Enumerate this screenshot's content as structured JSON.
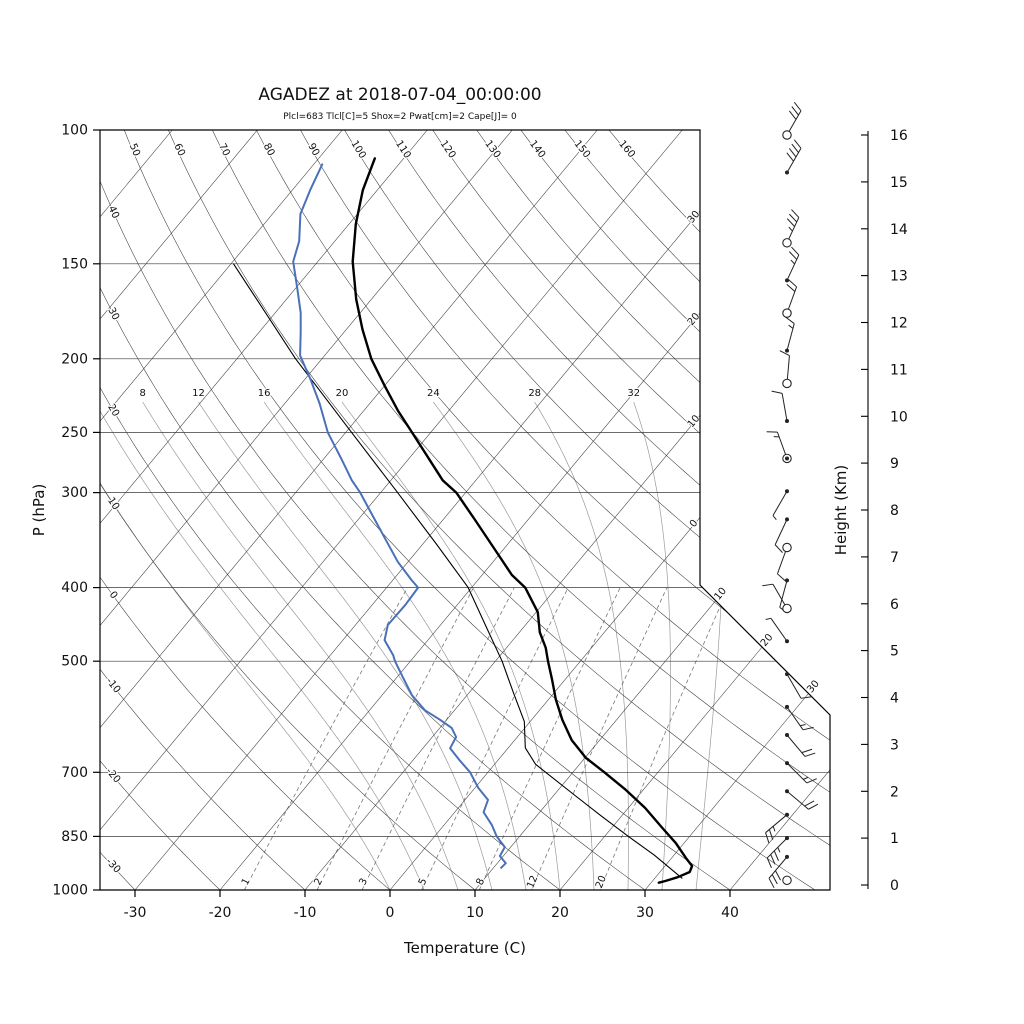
{
  "header": {
    "title": "AGADEZ at 2018-07-04_00:00:00",
    "subtitle": "Plcl=683 Tlcl[C]=5 Shox=2 Pwat[cm]=2 Cape[J]= 0",
    "subtitle_color": "#b22222"
  },
  "axes": {
    "pressure": {
      "label": "P (hPa)",
      "ticks": [
        100,
        150,
        200,
        250,
        300,
        400,
        500,
        700,
        850,
        1000
      ],
      "range": [
        100,
        1000
      ]
    },
    "temperature": {
      "label": "Temperature (C)",
      "ticks": [
        -30,
        -20,
        -10,
        0,
        10,
        20,
        30,
        40
      ]
    },
    "height": {
      "label": "Height (Km)",
      "ticks": [
        0,
        1,
        2,
        3,
        4,
        5,
        6,
        7,
        8,
        9,
        10,
        11,
        12,
        13,
        14,
        15,
        16
      ]
    }
  },
  "grid": {
    "isotherms": {
      "min": -120,
      "max": 40,
      "step": 10,
      "vertical_edge_labels": [
        {
          "t": -30,
          "text": "30"
        },
        {
          "t": -20,
          "text": "20"
        },
        {
          "t": -10,
          "text": "10"
        },
        {
          "t": 0,
          "text": "0"
        }
      ],
      "diagonal_labels": [
        {
          "t": 10,
          "text": "10"
        },
        {
          "t": 20,
          "text": "20"
        },
        {
          "t": 30,
          "text": "30"
        }
      ]
    },
    "dry_adiabats": {
      "min": -30,
      "max": 160,
      "step": 10
    },
    "moist_adiabats": {
      "values": [
        0,
        4,
        8,
        12,
        16,
        20,
        24,
        28,
        32,
        36
      ],
      "labeled": [
        8,
        12,
        16,
        20,
        24,
        28,
        32
      ]
    },
    "mixing_ratio_g_kg": [
      1,
      2,
      3,
      5,
      8,
      12,
      20
    ]
  },
  "colors": {
    "temperature": "#000000",
    "dewpoint": "#4a70b8",
    "parcel": "#000000",
    "isotherm": "#3a3a3a",
    "dry_adiabat": "#3a3a3a",
    "moist_adiabat": "#9a9a9a",
    "mixing_ratio": "#777777",
    "pressure_line": "#3a3a3a",
    "axis": "#000000"
  },
  "chart_data": {
    "type": "skewt_log_p_sounding",
    "station": "AGADEZ",
    "time": "2018-07-04_00:00:00",
    "parameters": {
      "plcl_hpa": 683,
      "tlcl_c": 5,
      "showalter": 2,
      "pwat_cm": 2,
      "cape_j": 0
    },
    "pressure_range_hpa": [
      100,
      1000
    ],
    "temperature_profile": [
      [
        109,
        -73.4
      ],
      [
        120,
        -71.7
      ],
      [
        133,
        -69.2
      ],
      [
        149,
        -65.9
      ],
      [
        167,
        -61.8
      ],
      [
        183,
        -58.1
      ],
      [
        200,
        -54.2
      ],
      [
        217,
        -50.0
      ],
      [
        234,
        -46.0
      ],
      [
        250,
        -42.2
      ],
      [
        270,
        -37.8
      ],
      [
        289,
        -33.9
      ],
      [
        300,
        -31.1
      ],
      [
        326,
        -26.2
      ],
      [
        357,
        -20.9
      ],
      [
        385,
        -16.5
      ],
      [
        400,
        -13.7
      ],
      [
        431,
        -9.8
      ],
      [
        458,
        -7.6
      ],
      [
        480,
        -5.4
      ],
      [
        500,
        -3.8
      ],
      [
        529,
        -1.5
      ],
      [
        562,
        0.9
      ],
      [
        597,
        3.6
      ],
      [
        635,
        6.7
      ],
      [
        670,
        10.1
      ],
      [
        700,
        13.7
      ],
      [
        738,
        17.9
      ],
      [
        780,
        22.0
      ],
      [
        829,
        26.0
      ],
      [
        867,
        29.0
      ],
      [
        908,
        31.7
      ],
      [
        930,
        33.2
      ],
      [
        947,
        33.5
      ],
      [
        962,
        32.6
      ],
      [
        973,
        31.5
      ],
      [
        978,
        30.9
      ]
    ],
    "dewpoint_profile": [
      [
        111,
        -79.0
      ],
      [
        120,
        -77.9
      ],
      [
        129,
        -76.7
      ],
      [
        140,
        -74.2
      ],
      [
        149,
        -72.9
      ],
      [
        162,
        -69.7
      ],
      [
        174,
        -67.0
      ],
      [
        184,
        -65.2
      ],
      [
        198,
        -62.9
      ],
      [
        213,
        -59.3
      ],
      [
        229,
        -55.9
      ],
      [
        250,
        -52.1
      ],
      [
        272,
        -47.7
      ],
      [
        289,
        -44.6
      ],
      [
        300,
        -42.4
      ],
      [
        321,
        -38.8
      ],
      [
        346,
        -34.8
      ],
      [
        370,
        -31.2
      ],
      [
        391,
        -27.8
      ],
      [
        400,
        -26.3
      ],
      [
        422,
        -26.1
      ],
      [
        448,
        -26.2
      ],
      [
        469,
        -25.1
      ],
      [
        491,
        -22.6
      ],
      [
        500,
        -21.8
      ],
      [
        526,
        -19.2
      ],
      [
        554,
        -16.5
      ],
      [
        580,
        -13.5
      ],
      [
        597,
        -10.8
      ],
      [
        612,
        -8.6
      ],
      [
        629,
        -7.2
      ],
      [
        651,
        -6.8
      ],
      [
        674,
        -4.6
      ],
      [
        700,
        -2.1
      ],
      [
        734,
        0.4
      ],
      [
        761,
        2.7
      ],
      [
        790,
        3.4
      ],
      [
        821,
        5.6
      ],
      [
        850,
        7.3
      ],
      [
        878,
        9.3
      ],
      [
        902,
        9.6
      ],
      [
        922,
        11.0
      ],
      [
        935,
        10.9
      ]
    ],
    "parcel_profile": [
      [
        965,
        33.2
      ],
      [
        900,
        27.7
      ],
      [
        850,
        22.8
      ],
      [
        800,
        17.7
      ],
      [
        750,
        12.4
      ],
      [
        700,
        6.8
      ],
      [
        683,
        4.8
      ],
      [
        650,
        2.0
      ],
      [
        600,
        -0.7
      ],
      [
        550,
        -4.8
      ],
      [
        500,
        -9.2
      ],
      [
        450,
        -14.5
      ],
      [
        400,
        -20.4
      ],
      [
        350,
        -28.5
      ],
      [
        300,
        -38.0
      ],
      [
        250,
        -49.3
      ],
      [
        200,
        -63.1
      ],
      [
        150,
        -79.7
      ]
    ],
    "wind_barbs": [
      {
        "km": 16.0,
        "sym": "circle",
        "angle": -60,
        "flag": 0,
        "full": 3,
        "half": 0,
        "speed_kt": 30
      },
      {
        "km": 15.2,
        "sym": "dot",
        "angle": -60,
        "flag": 0,
        "full": 4,
        "half": 0,
        "speed_kt": 40
      },
      {
        "km": 13.7,
        "sym": "circle",
        "angle": -65,
        "flag": 0,
        "full": 3,
        "half": 1,
        "speed_kt": 35
      },
      {
        "km": 12.9,
        "sym": "dot",
        "angle": -65,
        "flag": 0,
        "full": 2,
        "half": 1,
        "speed_kt": 25
      },
      {
        "km": 12.2,
        "sym": "circle",
        "angle": -70,
        "flag": 0,
        "full": 2,
        "half": 0,
        "speed_kt": 20
      },
      {
        "km": 11.4,
        "sym": "dot",
        "angle": -75,
        "flag": 0,
        "full": 1,
        "half": 1,
        "speed_kt": 15
      },
      {
        "km": 10.7,
        "sym": "circle",
        "angle": -85,
        "flag": 0,
        "full": 1,
        "half": 0,
        "speed_kt": 10
      },
      {
        "km": 9.9,
        "sym": "dot",
        "angle": -100,
        "flag": 0,
        "full": 1,
        "half": 0,
        "speed_kt": 10
      },
      {
        "km": 9.1,
        "sym": "circle-dot",
        "angle": -110,
        "flag": 0,
        "full": 1,
        "half": 1,
        "speed_kt": 15
      },
      {
        "km": 8.4,
        "sym": "dot",
        "angle": 120,
        "flag": 0,
        "full": 0,
        "half": 1,
        "speed_kt": 5
      },
      {
        "km": 7.8,
        "sym": "dot",
        "angle": 115,
        "flag": 0,
        "full": 1,
        "half": 0,
        "speed_kt": 10
      },
      {
        "km": 7.2,
        "sym": "circle",
        "angle": 110,
        "flag": 0,
        "full": 1,
        "half": 0,
        "speed_kt": 10
      },
      {
        "km": 6.5,
        "sym": "dot",
        "angle": 105,
        "flag": 0,
        "full": 0,
        "half": 1,
        "speed_kt": 5
      },
      {
        "km": 5.9,
        "sym": "circle",
        "angle": -120,
        "flag": 0,
        "full": 1,
        "half": 0,
        "speed_kt": 10
      },
      {
        "km": 5.2,
        "sym": "dot",
        "angle": -125,
        "flag": 0,
        "full": 0,
        "half": 1,
        "speed_kt": 5
      },
      {
        "km": 4.5,
        "sym": "dot",
        "angle": 60,
        "flag": 0,
        "full": 1,
        "half": 0,
        "speed_kt": 10
      },
      {
        "km": 3.8,
        "sym": "dot",
        "angle": 55,
        "flag": 0,
        "full": 1,
        "half": 1,
        "speed_kt": 15
      },
      {
        "km": 3.2,
        "sym": "dot",
        "angle": 50,
        "flag": 0,
        "full": 2,
        "half": 0,
        "speed_kt": 20
      },
      {
        "km": 2.6,
        "sym": "dot",
        "angle": 45,
        "flag": 0,
        "full": 1,
        "half": 1,
        "speed_kt": 15
      },
      {
        "km": 2.0,
        "sym": "dot",
        "angle": 40,
        "flag": 0,
        "full": 2,
        "half": 0,
        "speed_kt": 20
      },
      {
        "km": 1.5,
        "sym": "dot",
        "angle": 140,
        "flag": 0,
        "full": 2,
        "half": 1,
        "speed_kt": 25
      },
      {
        "km": 1.0,
        "sym": "dot",
        "angle": 135,
        "flag": 0,
        "full": 3,
        "half": 1,
        "speed_kt": 35
      },
      {
        "km": 0.6,
        "sym": "dot",
        "angle": 130,
        "flag": 0,
        "full": 3,
        "half": 0,
        "speed_kt": 30
      },
      {
        "km": 0.1,
        "sym": "circle",
        "angle": 0,
        "flag": 0,
        "full": 0,
        "half": 0,
        "speed_kt": 0
      }
    ]
  }
}
